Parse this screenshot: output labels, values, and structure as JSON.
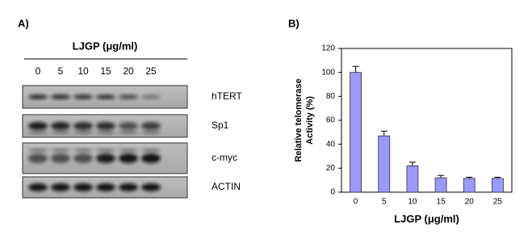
{
  "panel_a": {
    "label": "A)",
    "treatment": "LJGP (μg/ml)",
    "lanes": [
      "0",
      "5",
      "10",
      "15",
      "20",
      "25"
    ],
    "bands": [
      "hTERT",
      "Sp1",
      "c-myc",
      "ACTIN"
    ]
  },
  "chart_data": {
    "type": "bar",
    "panel_label": "B)",
    "ylabel": [
      "Relative telomerase",
      "Activity (%)"
    ],
    "xlabel": "LJGP (μg/ml)",
    "categories": [
      "0",
      "5",
      "10",
      "15",
      "20",
      "25"
    ],
    "values": [
      100,
      47,
      22,
      12,
      11.5,
      11.5
    ],
    "error": [
      5,
      4,
      3,
      2,
      1,
      1
    ],
    "color": "#9999ff",
    "ylim": [
      0,
      120
    ],
    "yticks": [
      0,
      20,
      40,
      60,
      80,
      100,
      120
    ]
  }
}
